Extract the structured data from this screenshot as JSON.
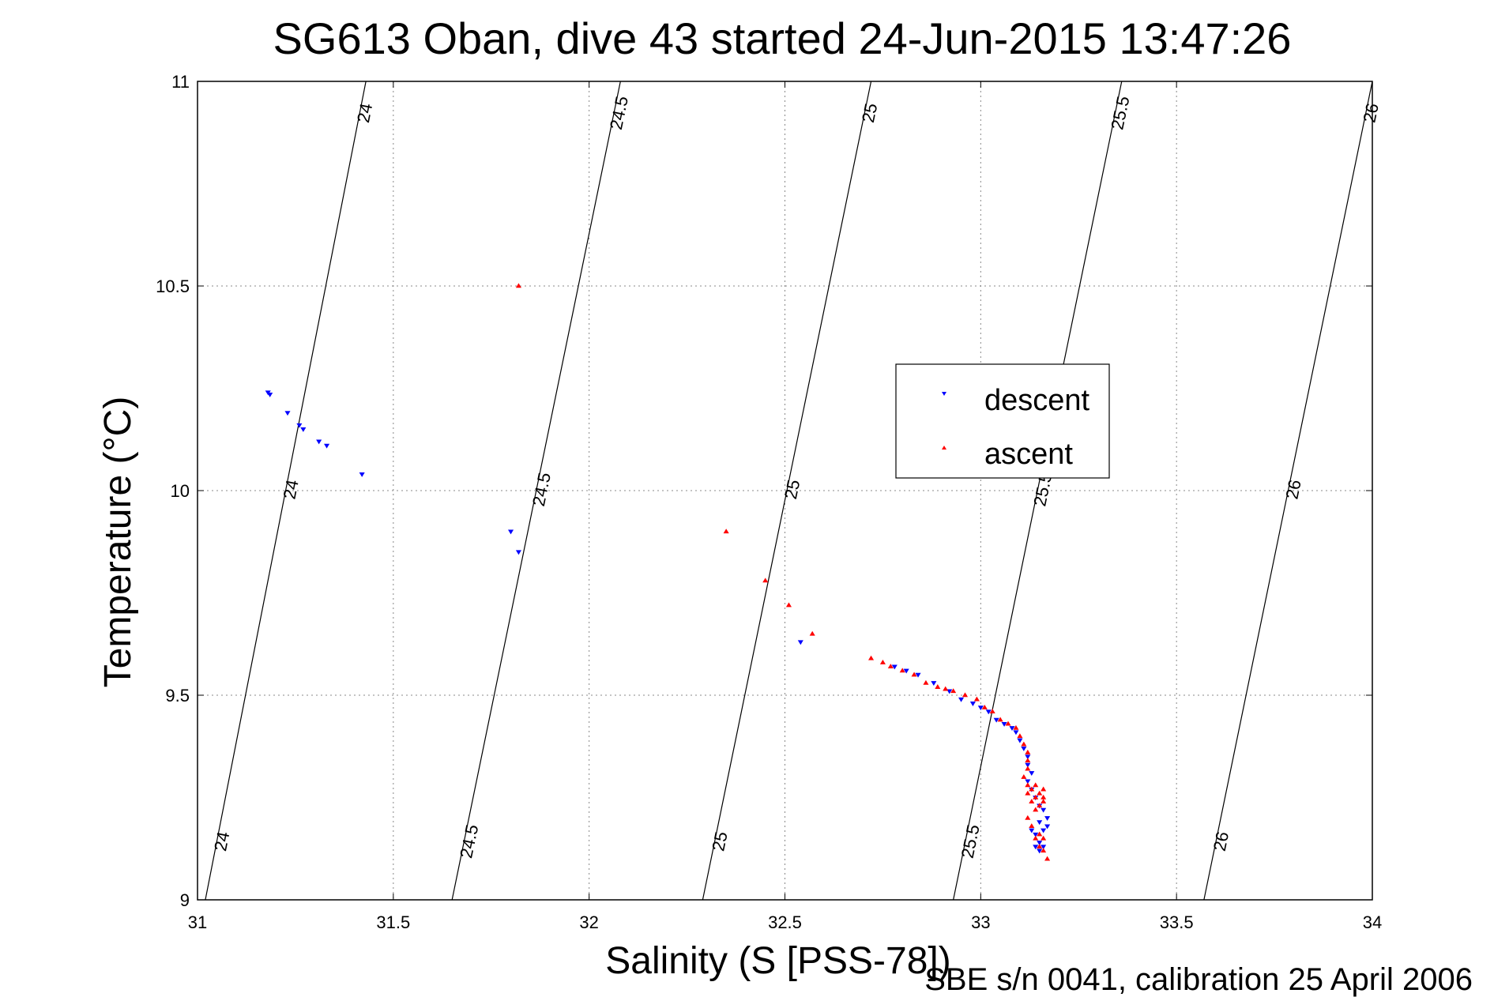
{
  "chart_data": {
    "type": "scatter",
    "title": "SG613 Oban, dive 43 started 24-Jun-2015 13:47:26",
    "xlabel": "Salinity (S [PSS-78])",
    "ylabel": "Temperature (°C)",
    "footer": "SBE s/n 0041, calibration 25 April 2006",
    "xlim": [
      31,
      34
    ],
    "ylim": [
      9,
      11
    ],
    "x_ticks": [
      "31",
      "31.5",
      "32",
      "32.5",
      "33",
      "33.5",
      "34"
    ],
    "y_ticks": [
      "9",
      "9.5",
      "10",
      "10.5",
      "11"
    ],
    "grid": true,
    "legend_placement": "center-right",
    "isopycnals": [
      {
        "label": "24",
        "points": [
          [
            31.02,
            9.0
          ],
          [
            31.43,
            11.0
          ]
        ]
      },
      {
        "label": "24.5",
        "points": [
          [
            31.65,
            9.0
          ],
          [
            32.08,
            11.0
          ]
        ]
      },
      {
        "label": "25",
        "points": [
          [
            32.29,
            9.0
          ],
          [
            32.72,
            11.0
          ]
        ]
      },
      {
        "label": "25.5",
        "points": [
          [
            32.93,
            9.0
          ],
          [
            33.36,
            11.0
          ]
        ]
      },
      {
        "label": "26",
        "points": [
          [
            33.57,
            9.0
          ],
          [
            34.0,
            11.0
          ]
        ]
      }
    ],
    "series": [
      {
        "name": "descent",
        "color": "#0000ff",
        "marker": "triangle-down",
        "points": [
          [
            31.18,
            10.24
          ],
          [
            31.185,
            10.235
          ],
          [
            31.23,
            10.19
          ],
          [
            31.26,
            10.16
          ],
          [
            31.27,
            10.15
          ],
          [
            31.31,
            10.12
          ],
          [
            31.33,
            10.11
          ],
          [
            31.42,
            10.04
          ],
          [
            31.8,
            9.9
          ],
          [
            31.82,
            9.85
          ],
          [
            32.54,
            9.63
          ],
          [
            32.78,
            9.57
          ],
          [
            32.81,
            9.56
          ],
          [
            32.84,
            9.55
          ],
          [
            32.88,
            9.53
          ],
          [
            32.92,
            9.51
          ],
          [
            32.95,
            9.49
          ],
          [
            32.98,
            9.48
          ],
          [
            33.0,
            9.47
          ],
          [
            33.02,
            9.46
          ],
          [
            33.04,
            9.44
          ],
          [
            33.06,
            9.43
          ],
          [
            33.08,
            9.42
          ],
          [
            33.09,
            9.41
          ],
          [
            33.1,
            9.39
          ],
          [
            33.11,
            9.37
          ],
          [
            33.12,
            9.35
          ],
          [
            33.12,
            9.33
          ],
          [
            33.13,
            9.31
          ],
          [
            33.12,
            9.29
          ],
          [
            33.13,
            9.27
          ],
          [
            33.14,
            9.25
          ],
          [
            33.15,
            9.23
          ],
          [
            33.16,
            9.22
          ],
          [
            33.15,
            9.19
          ],
          [
            33.17,
            9.2
          ],
          [
            33.16,
            9.17
          ],
          [
            33.14,
            9.16
          ],
          [
            33.15,
            9.14
          ],
          [
            33.14,
            9.13
          ],
          [
            33.15,
            9.12
          ],
          [
            33.16,
            9.13
          ],
          [
            33.17,
            9.18
          ],
          [
            33.13,
            9.17
          ]
        ]
      },
      {
        "name": "ascent",
        "color": "#ff0000",
        "marker": "triangle-up",
        "points": [
          [
            31.82,
            10.5
          ],
          [
            32.35,
            9.9
          ],
          [
            32.45,
            9.78
          ],
          [
            32.51,
            9.72
          ],
          [
            32.57,
            9.65
          ],
          [
            32.72,
            9.59
          ],
          [
            32.75,
            9.58
          ],
          [
            32.77,
            9.57
          ],
          [
            32.8,
            9.56
          ],
          [
            32.83,
            9.55
          ],
          [
            32.86,
            9.53
          ],
          [
            32.89,
            9.52
          ],
          [
            32.91,
            9.515
          ],
          [
            32.93,
            9.51
          ],
          [
            32.96,
            9.5
          ],
          [
            32.99,
            9.49
          ],
          [
            33.01,
            9.47
          ],
          [
            33.03,
            9.46
          ],
          [
            33.05,
            9.44
          ],
          [
            33.07,
            9.43
          ],
          [
            33.09,
            9.42
          ],
          [
            33.1,
            9.4
          ],
          [
            33.11,
            9.38
          ],
          [
            33.12,
            9.36
          ],
          [
            33.12,
            9.34
          ],
          [
            33.12,
            9.32
          ],
          [
            33.11,
            9.3
          ],
          [
            33.12,
            9.28
          ],
          [
            33.13,
            9.27
          ],
          [
            33.12,
            9.26
          ],
          [
            33.14,
            9.25
          ],
          [
            33.15,
            9.26
          ],
          [
            33.16,
            9.27
          ],
          [
            33.13,
            9.24
          ],
          [
            33.15,
            9.23
          ],
          [
            33.16,
            9.25
          ],
          [
            33.14,
            9.22
          ],
          [
            33.12,
            9.2
          ],
          [
            33.15,
            9.16
          ],
          [
            33.16,
            9.15
          ],
          [
            33.14,
            9.15
          ],
          [
            33.15,
            9.13
          ],
          [
            33.16,
            9.12
          ],
          [
            33.17,
            9.1
          ],
          [
            33.13,
            9.18
          ],
          [
            33.14,
            9.28
          ],
          [
            33.16,
            9.24
          ]
        ]
      }
    ]
  }
}
